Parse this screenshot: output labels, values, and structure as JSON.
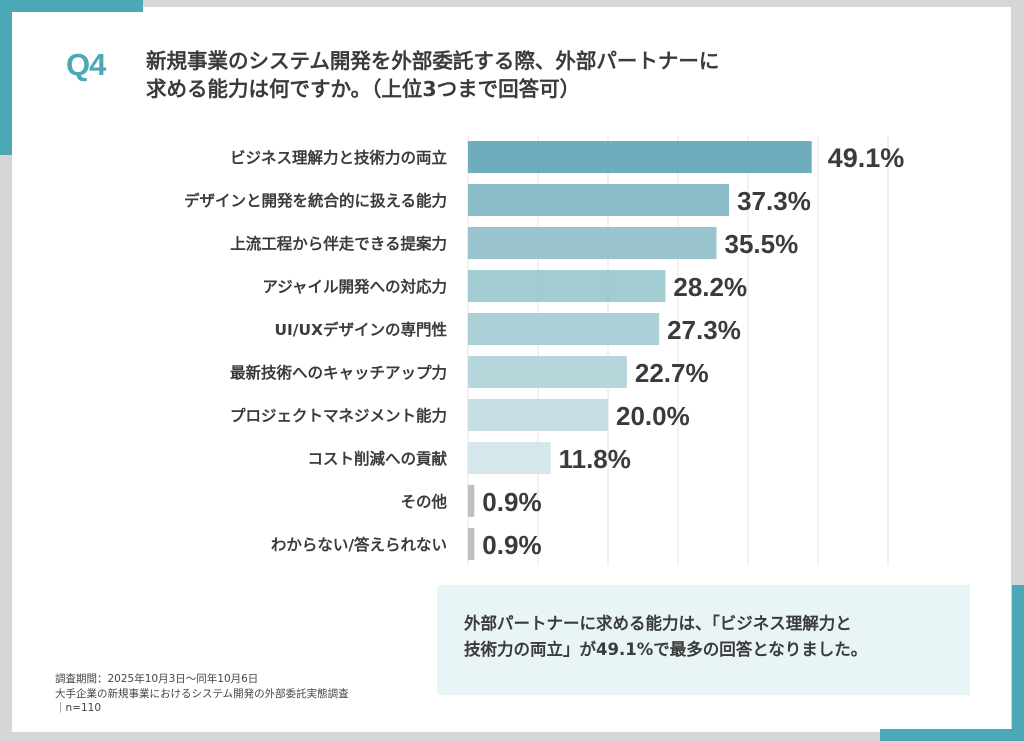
{
  "header": {
    "question_label": "Q4",
    "title_lines": [
      "新規事業のシステム開発を外部委託する際、外部パートナーに",
      "求める能力は何ですか。（上位3つまで回答可）"
    ]
  },
  "colors": {
    "accent": "#4aa8b7",
    "background": "#d6d6d6",
    "callout_bg": "#e8f4f5",
    "text": "#3b3b3b",
    "gridline": "#e3e3e3",
    "other_bar": "#bdbdbd"
  },
  "chart_data": {
    "type": "bar",
    "orientation": "horizontal",
    "title": "新規事業のシステム開発を外部委託する際、外部パートナーに求める能力は何ですか。（上位3つまで回答可）",
    "xlabel": "",
    "ylabel": "",
    "xlim": [
      0,
      60
    ],
    "grid": true,
    "grid_step": 10,
    "categories": [
      "ビジネス理解力と技術力の両立",
      "デザインと開発を統合的に扱える能力",
      "上流工程から伴走できる提案力",
      "アジャイル開発への対応力",
      "UI/UXデザインの専門性",
      "最新技術へのキャッチアップ力",
      "プロジェクトマネジメント能力",
      "コスト削減への貢献",
      "その他",
      "わからない/答えられない"
    ],
    "values": [
      49.1,
      37.3,
      35.5,
      28.2,
      27.3,
      22.7,
      20.0,
      11.8,
      0.9,
      0.9
    ],
    "value_labels": [
      "49.1%",
      "37.3%",
      "35.5%",
      "28.2%",
      "27.3%",
      "22.7%",
      "20.0%",
      "11.8%",
      "0.9%",
      "0.9%"
    ],
    "bar_colors": [
      "#66a9b8",
      "#84b9c5",
      "#93c1cb",
      "#9ec8d0",
      "#a6ccd4",
      "#b2d4da",
      "#c3dde2",
      "#d3e6ea",
      "#bdbdbd",
      "#bdbdbd"
    ]
  },
  "callout": {
    "lines": [
      "外部パートナーに求める能力は、「ビジネス理解力と",
      "技術力の両立」が49.1%で最多の回答となりました。"
    ]
  },
  "footnote": {
    "lines": [
      "調査期間：2025年10月3日～同年10月6日",
      "大手企業の新規事業におけるシステム開発の外部委託実態調査",
      "｜n=110"
    ]
  }
}
